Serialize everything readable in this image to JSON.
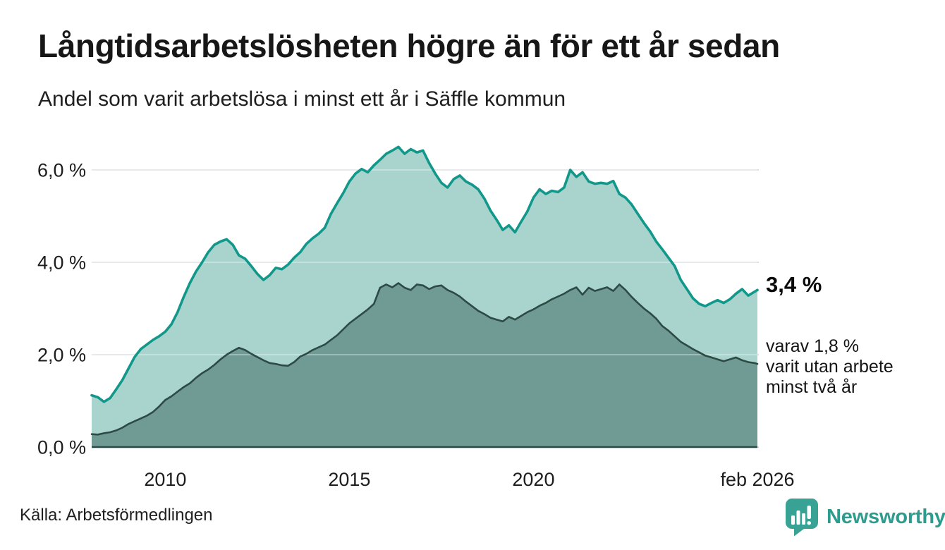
{
  "header": {
    "title": "Långtidsarbetslösheten högre än för ett år sedan",
    "subtitle": "Andel som varit arbetslösa i minst ett år i Säffle kommun"
  },
  "chart_data": {
    "type": "area",
    "title": "Långtidsarbetslösheten högre än för ett år sedan",
    "subtitle": "Andel som varit arbetslösa i minst ett år i Säffle kommun",
    "xlabel": "",
    "ylabel": "",
    "unit": "%",
    "grid": "horizontal",
    "legend_position": "none",
    "x_start_year": 2008,
    "x_step_months": 2,
    "x_end_year": 2026.083,
    "x_end_label": "feb 2026",
    "ylim": [
      0,
      6.6
    ],
    "yticks": [
      {
        "value": 0,
        "label": "0,0 %"
      },
      {
        "value": 2,
        "label": "2,0 %"
      },
      {
        "value": 4,
        "label": "4,0 %"
      },
      {
        "value": 6,
        "label": "6,0 %"
      }
    ],
    "xticks": [
      {
        "value": 2010,
        "label": "2010"
      },
      {
        "value": 2015,
        "label": "2015"
      },
      {
        "value": 2020,
        "label": "2020"
      },
      {
        "value": 2026.083,
        "label": "feb 2026"
      }
    ],
    "series": [
      {
        "name": "Arbetslösa minst ett år",
        "stroke": "#11988a",
        "fill": "#a8d4cd",
        "stroke_width": 3.6,
        "latest_value": 3.4,
        "latest_label": "3,4 %",
        "values": [
          1.12,
          1.08,
          0.98,
          1.06,
          1.25,
          1.45,
          1.7,
          1.95,
          2.12,
          2.22,
          2.32,
          2.4,
          2.5,
          2.66,
          2.92,
          3.25,
          3.55,
          3.8,
          4.0,
          4.22,
          4.38,
          4.45,
          4.5,
          4.38,
          4.15,
          4.08,
          3.92,
          3.75,
          3.62,
          3.72,
          3.88,
          3.85,
          3.95,
          4.1,
          4.22,
          4.4,
          4.52,
          4.62,
          4.75,
          5.05,
          5.28,
          5.5,
          5.75,
          5.92,
          6.02,
          5.95,
          6.1,
          6.22,
          6.35,
          6.42,
          6.5,
          6.35,
          6.45,
          6.38,
          6.42,
          6.15,
          5.92,
          5.72,
          5.62,
          5.8,
          5.88,
          5.75,
          5.68,
          5.58,
          5.38,
          5.12,
          4.92,
          4.7,
          4.8,
          4.65,
          4.88,
          5.1,
          5.4,
          5.58,
          5.48,
          5.55,
          5.52,
          5.62,
          6.0,
          5.85,
          5.95,
          5.75,
          5.7,
          5.72,
          5.7,
          5.76,
          5.48,
          5.4,
          5.25,
          5.05,
          4.85,
          4.67,
          4.45,
          4.28,
          4.1,
          3.92,
          3.62,
          3.42,
          3.22,
          3.1,
          3.05,
          3.12,
          3.18,
          3.12,
          3.2,
          3.32,
          3.42,
          3.28,
          3.36,
          3.4
        ]
      },
      {
        "name": "varav arbetslösa minst två år",
        "stroke": "#2e4a45",
        "fill": "#6f9b94",
        "stroke_width": 2.6,
        "latest_value": 1.8,
        "latest_label": "1,8 %",
        "values": [
          0.28,
          0.27,
          0.3,
          0.32,
          0.36,
          0.42,
          0.5,
          0.56,
          0.62,
          0.68,
          0.76,
          0.88,
          1.02,
          1.1,
          1.2,
          1.3,
          1.38,
          1.5,
          1.6,
          1.68,
          1.78,
          1.9,
          2.0,
          2.08,
          2.15,
          2.1,
          2.02,
          1.95,
          1.88,
          1.82,
          1.8,
          1.77,
          1.76,
          1.84,
          1.96,
          2.02,
          2.1,
          2.16,
          2.22,
          2.32,
          2.42,
          2.55,
          2.68,
          2.78,
          2.88,
          2.98,
          3.1,
          3.45,
          3.52,
          3.46,
          3.55,
          3.45,
          3.4,
          3.52,
          3.5,
          3.42,
          3.48,
          3.5,
          3.4,
          3.34,
          3.26,
          3.15,
          3.05,
          2.95,
          2.88,
          2.8,
          2.76,
          2.72,
          2.82,
          2.76,
          2.84,
          2.92,
          2.98,
          3.06,
          3.12,
          3.2,
          3.26,
          3.32,
          3.4,
          3.46,
          3.3,
          3.45,
          3.38,
          3.42,
          3.46,
          3.38,
          3.52,
          3.4,
          3.25,
          3.12,
          3.0,
          2.9,
          2.78,
          2.62,
          2.52,
          2.4,
          2.28,
          2.2,
          2.12,
          2.05,
          1.98,
          1.94,
          1.9,
          1.86,
          1.9,
          1.94,
          1.88,
          1.84,
          1.82,
          1.8
        ]
      }
    ]
  },
  "annotations": {
    "end_value_primary": "3,4 %",
    "end_note_lines": [
      "varav 1,8 %",
      "varit utan arbete",
      "minst två år"
    ]
  },
  "footer": {
    "source": "Källa: Arbetsförmedlingen",
    "brand": "Newsworthy"
  },
  "colors": {
    "accent_teal_line": "#11988a",
    "light_area_fill": "#a8d4cd",
    "dark_area_fill": "#6f9b94",
    "dark_line": "#2e4a45",
    "gridline": "#dcdee1",
    "text": "#1d1d1d",
    "brand_teal": "#2d9c8e",
    "logo_bubble": "#38a294"
  }
}
